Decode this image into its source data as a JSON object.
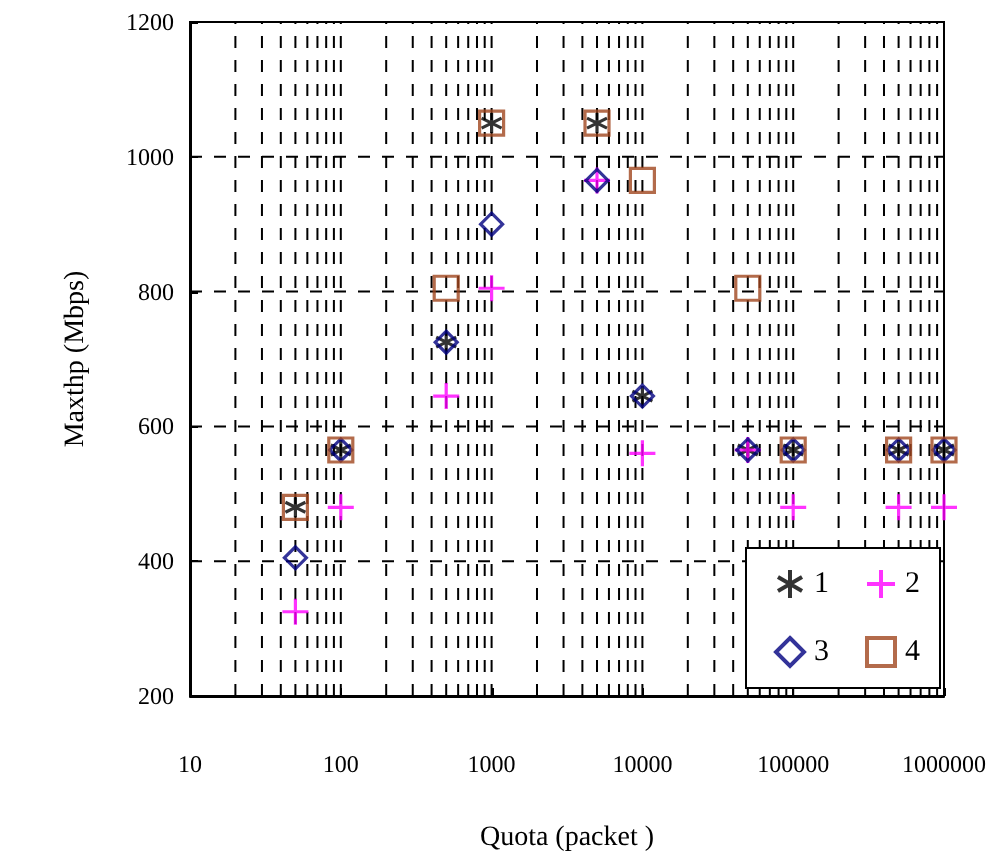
{
  "chart_data": {
    "type": "scatter",
    "xlabel": "Quota (packet )",
    "ylabel": "Maxthp (Mbps)",
    "x": [
      50,
      100,
      500,
      1000,
      5000,
      10000,
      50000,
      100000,
      500000,
      1000000
    ],
    "series": [
      {
        "name": "1",
        "color": "#000000",
        "values": [
          480,
          565,
          725,
          1050,
          1050,
          645,
          565,
          565,
          565,
          565
        ]
      },
      {
        "name": "2",
        "color": "#ff00ff",
        "marker": "cross",
        "values": [
          325,
          480,
          645,
          805,
          965,
          560,
          565,
          480,
          480,
          480
        ]
      },
      {
        "name": "3",
        "color": "#000080",
        "marker": "diamond",
        "values": [
          405,
          565,
          725,
          900,
          965,
          645,
          565,
          565,
          565,
          565
        ]
      },
      {
        "name": "4",
        "color": "#a0461e",
        "marker": "square",
        "values": [
          480,
          565,
          805,
          1050,
          1050,
          965,
          805,
          565,
          565,
          565
        ]
      }
    ],
    "log": "x",
    "xlim": [
      10,
      1000000
    ],
    "xticks": [
      10,
      100,
      1000,
      10000,
      100000,
      1000000
    ],
    "ylim": [
      200,
      1200
    ],
    "yticks": [
      200,
      400,
      600,
      800,
      1000,
      1200
    ],
    "grid": true,
    "line_style": "dashed",
    "legend": "bottom right"
  }
}
